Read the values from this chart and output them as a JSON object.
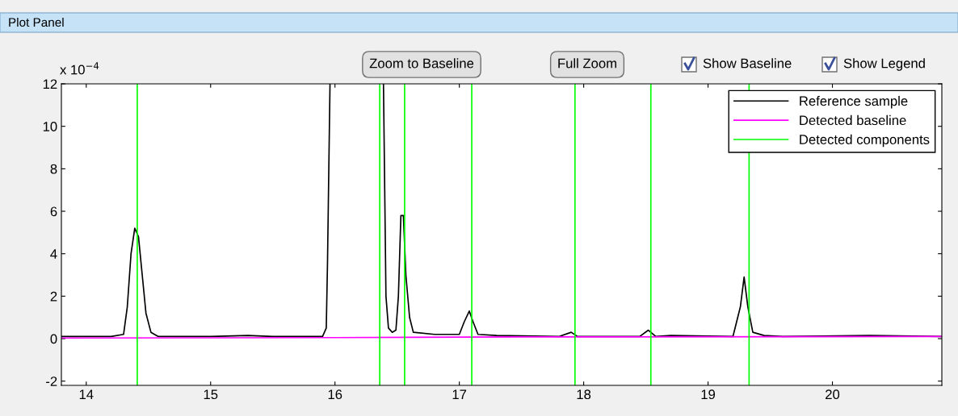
{
  "chart_data": {
    "type": "line",
    "title": "Plot Panel",
    "annotations": [
      "x 10$^{−4}$",
      "Zoom to Baseline",
      "Full Zoom",
      "Show Baseline",
      "Show Legend"
    ],
    "series": [
      {
        "name": "Reference sample",
        "color": "#000000",
        "x": [
          13.8,
          14.2,
          14.3,
          14.33,
          14.36,
          14.39,
          14.42,
          14.45,
          14.48,
          14.52,
          14.58,
          15.0,
          15.3,
          15.5,
          15.9,
          15.93,
          15.94,
          15.96,
          16.1,
          16.39,
          16.4,
          16.41,
          16.43,
          16.46,
          16.49,
          16.51,
          16.53,
          16.55,
          16.57,
          16.6,
          16.63,
          16.8,
          17.0,
          17.04,
          17.08,
          17.11,
          17.15,
          17.3,
          17.8,
          17.9,
          17.95,
          18.45,
          18.52,
          18.58,
          18.7,
          19.2,
          19.26,
          19.29,
          19.32,
          19.36,
          19.45,
          19.6,
          20.3,
          20.88
        ],
        "values": [
          0.1,
          0.1,
          0.2,
          1.5,
          4,
          5.2,
          4.8,
          3,
          1.2,
          0.3,
          0.1,
          0.1,
          0.15,
          0.1,
          0.1,
          0.5,
          3.6,
          12,
          null,
          12,
          7,
          2,
          0.5,
          0.3,
          0.4,
          2,
          5.8,
          5.8,
          3,
          1,
          0.3,
          0.2,
          0.2,
          0.8,
          1.3,
          0.8,
          0.2,
          0.15,
          0.1,
          0.3,
          0.1,
          0.1,
          0.4,
          0.1,
          0.15,
          0.1,
          1.5,
          2.9,
          1.5,
          0.3,
          0.15,
          0.1,
          0.15,
          0.1
        ]
      },
      {
        "name": "Detected baseline",
        "color": "#ff00ff",
        "x": [
          13.8,
          16.0,
          17.5,
          20.88
        ],
        "values": [
          0.03,
          0.05,
          0.08,
          0.1
        ]
      },
      {
        "name": "Detected components",
        "color": "#00ff00"
      }
    ],
    "ref_lines": [
      {
        "axis": "x",
        "value": 14.41,
        "color": "#00ff00"
      },
      {
        "axis": "x",
        "value": 16.36,
        "color": "#00ff00"
      },
      {
        "axis": "x",
        "value": 16.56,
        "color": "#00ff00"
      },
      {
        "axis": "x",
        "value": 17.1,
        "color": "#00ff00"
      },
      {
        "axis": "x",
        "value": 17.93,
        "color": "#00ff00"
      },
      {
        "axis": "x",
        "value": 18.54,
        "color": "#00ff00"
      },
      {
        "axis": "x",
        "value": 19.33,
        "color": "#00ff00"
      }
    ],
    "xlim": [
      13.8,
      20.88
    ],
    "xticks": [
      14,
      15,
      16,
      17,
      18,
      19,
      20
    ],
    "ylim": [
      -2.2,
      12
    ],
    "yticks": [
      -2,
      0,
      2,
      4,
      6,
      8,
      10,
      12
    ],
    "legend": "top right"
  }
}
